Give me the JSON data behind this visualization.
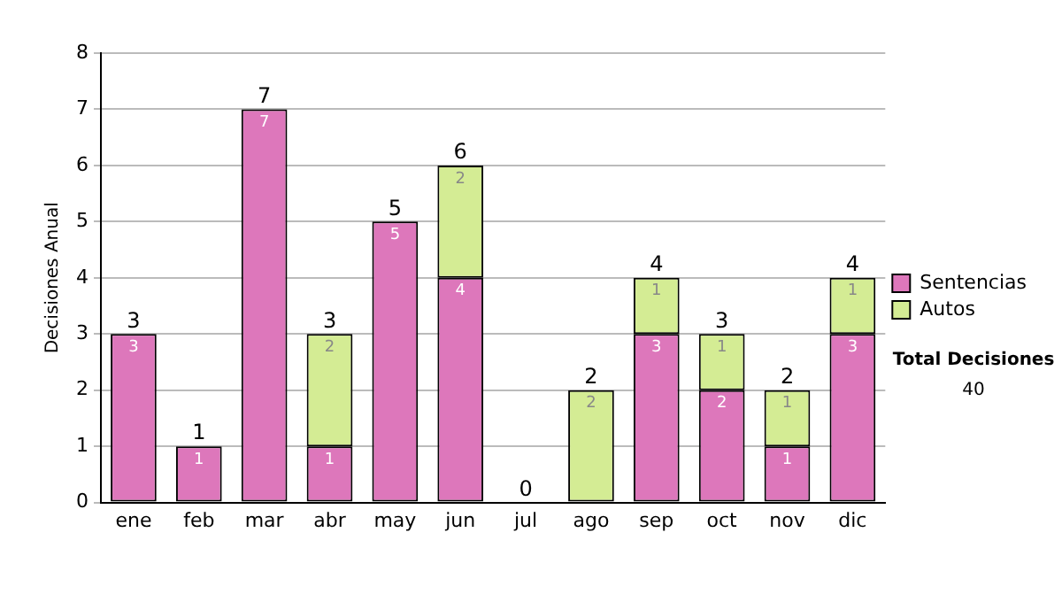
{
  "chart_data": {
    "type": "bar",
    "ylabel": "Decisiones Anual",
    "categories": [
      "ene",
      "feb",
      "mar",
      "abr",
      "may",
      "jun",
      "jul",
      "ago",
      "sep",
      "oct",
      "nov",
      "dic"
    ],
    "stacked": true,
    "series": [
      {
        "name": "Sentencias",
        "color": "#dd77bb",
        "values": [
          3,
          1,
          7,
          1,
          5,
          4,
          0,
          0,
          3,
          2,
          1,
          3
        ],
        "value_labels": [
          "3",
          "1",
          "7",
          "1",
          "5",
          "4",
          null,
          null,
          "3",
          "2",
          "1",
          "3"
        ]
      },
      {
        "name": "Autos",
        "color": "#d4ec94",
        "values": [
          0,
          0,
          0,
          2,
          0,
          2,
          0,
          2,
          1,
          1,
          1,
          1
        ],
        "value_labels": [
          null,
          null,
          null,
          "2",
          null,
          "2",
          null,
          "2",
          "1",
          "1",
          "1",
          "1"
        ]
      }
    ],
    "totals": [
      "3",
      "1",
      "7",
      "3",
      "5",
      "6",
      "0",
      "2",
      "4",
      "3",
      "2",
      "4"
    ],
    "ylim": [
      0,
      8
    ],
    "yticks": [
      0,
      1,
      2,
      3,
      4,
      5,
      6,
      7,
      8
    ],
    "grid": "y",
    "legend": "right",
    "annotations": [
      "Total Decisiones",
      "40"
    ]
  }
}
